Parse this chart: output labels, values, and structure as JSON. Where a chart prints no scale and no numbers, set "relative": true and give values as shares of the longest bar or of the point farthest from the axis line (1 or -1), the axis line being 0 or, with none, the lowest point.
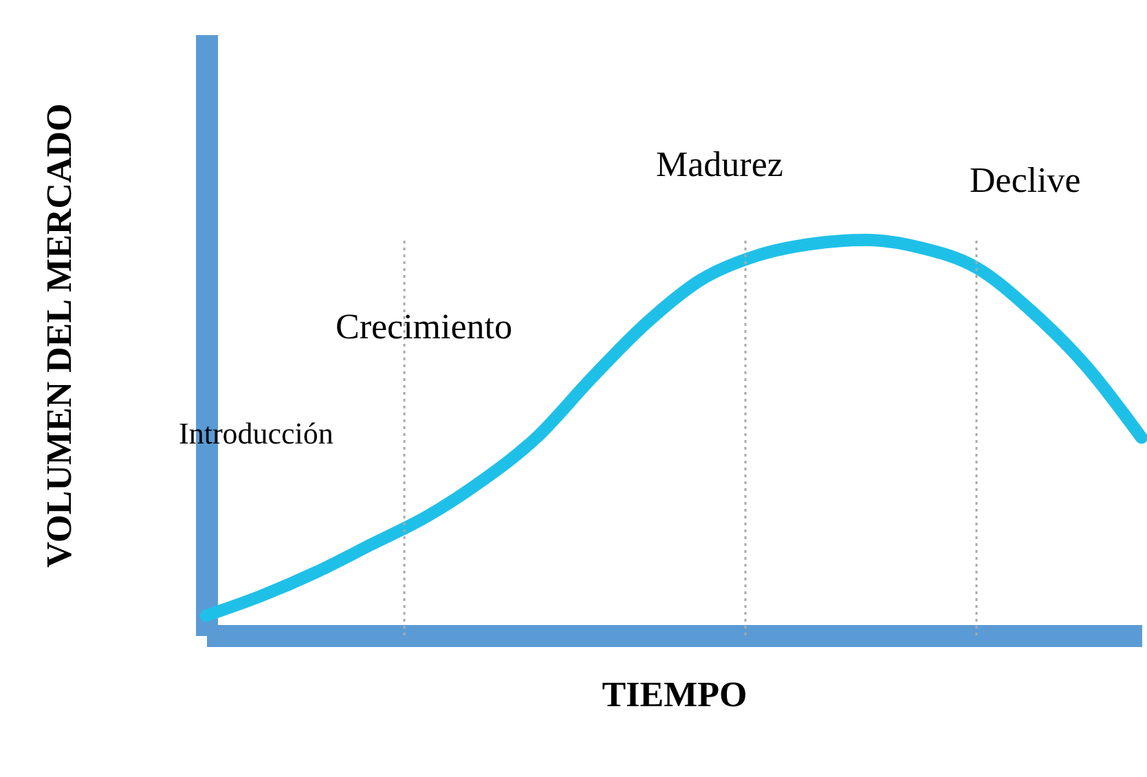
{
  "chart_data": {
    "type": "line",
    "relative": true,
    "xlabel": "TIEMPO",
    "ylabel": "VOLUMEN DEL MERCADO",
    "tick_labels": false,
    "categories": [
      null,
      null,
      null,
      null,
      null,
      null,
      null,
      null,
      null,
      null,
      null,
      null,
      null,
      null,
      null,
      null,
      null,
      null
    ],
    "series": [
      {
        "color": "#1fc0e8",
        "values": [
          0.05,
          0.1,
          0.16,
          0.23,
          0.3,
          0.39,
          0.5,
          0.65,
          0.79,
          0.9,
          0.96,
          0.99,
          1.0,
          0.98,
          0.93,
          0.82,
          0.68,
          0.5
        ]
      }
    ],
    "annotations": [
      "Introducción",
      "Crecimiento",
      "Madurez",
      "Declive"
    ],
    "grid": false,
    "line_style": "solid"
  }
}
